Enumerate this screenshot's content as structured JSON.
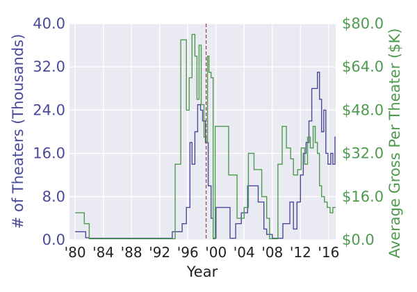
{
  "chart_data": {
    "type": "line",
    "xlabel": "Year",
    "ylabel_left": "# of Theaters (Thousands)",
    "ylabel_right": "Average Gross Per Theater ($K)",
    "xlim": [
      1979.2,
      2017
    ],
    "ylim_left": [
      0,
      40
    ],
    "ylim_right": [
      0,
      80
    ],
    "x_ticks": [
      1980,
      1984,
      1988,
      1992,
      1996,
      2000,
      2004,
      2008,
      2012,
      2016
    ],
    "x_tick_labels": [
      "'80",
      "'84",
      "'88",
      "'92",
      "'96",
      "'00",
      "'04",
      "'08",
      "'12",
      "'16"
    ],
    "y_ticks_left": [
      0,
      8,
      16,
      24,
      32,
      40
    ],
    "y_tick_labels_left": [
      "0.0",
      "8.0",
      "16.0",
      "24.0",
      "32.0",
      "40.0"
    ],
    "y_ticks_right": [
      0,
      16,
      32,
      48,
      64,
      80
    ],
    "y_tick_labels_right": [
      "$0.0",
      "$16.0",
      "$32.0",
      "$48.0",
      "$64.0",
      "$80.0"
    ],
    "grid": true,
    "vline": {
      "x": 1998.6,
      "style": "dashed",
      "color": "#a0505a"
    },
    "series": [
      {
        "axis": "left",
        "color": "#4a4a9a",
        "x": [
          1980,
          1981,
          1981.5,
          1982,
          1993.5,
          1993.8,
          1994.5,
          1995.2,
          1995.8,
          1996.3,
          1996.6,
          1997,
          1997.4,
          1997.8,
          1998.1,
          1998.5,
          1998.9,
          1999.3,
          1999.6,
          2000,
          2001.5,
          2002,
          2002.8,
          2003.2,
          2003.6,
          2004.5,
          2005.5,
          2006,
          2006.8,
          2007.2,
          2008,
          2009,
          2009.5,
          2010,
          2010.5,
          2011,
          2011.5,
          2012,
          2012.4,
          2012.8,
          2013.2,
          2013.6,
          2014,
          2014.4,
          2014.7,
          2015,
          2015.3,
          2015.6,
          2015.9,
          2016.3,
          2016.6,
          2016.9
        ],
        "y": [
          1.5,
          1.5,
          0.4,
          0.3,
          0.3,
          1.5,
          1.5,
          3,
          6,
          18,
          14,
          20,
          25,
          24,
          22,
          18,
          10,
          4,
          0.3,
          6,
          6,
          0.3,
          3,
          3,
          5,
          10,
          10,
          7,
          2,
          1,
          0.3,
          0.3,
          3,
          3,
          7,
          2,
          7,
          12,
          16,
          18,
          22,
          28,
          28,
          31,
          26,
          20,
          24,
          16,
          14,
          16,
          14,
          19
        ]
      },
      {
        "axis": "right",
        "color": "#4e9a4e",
        "x": [
          1980,
          1981,
          1981.3,
          1981.5,
          1982,
          1992,
          1994.2,
          1994.4,
          1995,
          1995.4,
          1995.8,
          1996.2,
          1996.6,
          1997,
          1997.3,
          1997.6,
          1997.9,
          1998.3,
          1998.6,
          1998.8,
          1999,
          1999.3,
          1999.6,
          1999.9,
          2000.2,
          2001.5,
          2001.8,
          2002.6,
          2003,
          2003.4,
          2004,
          2004.6,
          2005.4,
          2006,
          2006.5,
          2007.2,
          2007.6,
          2008.2,
          2008.8,
          2009.4,
          2010,
          2010.6,
          2011,
          2011.6,
          2012.1,
          2012.6,
          2013,
          2013.4,
          2013.8,
          2014.1,
          2014.4,
          2014.7,
          2015,
          2015.4,
          2015.8,
          2016.2,
          2016.6
        ],
        "y": [
          10,
          10,
          6,
          6,
          0.4,
          0.4,
          28,
          28,
          74,
          74,
          48,
          60,
          76,
          68,
          52,
          72,
          50,
          38,
          36,
          68,
          62,
          60,
          0.4,
          42,
          42,
          42,
          24,
          24,
          8,
          8,
          12,
          32,
          26,
          26,
          16,
          8,
          0.4,
          0.4,
          28,
          42,
          34,
          30,
          24,
          26,
          34,
          28,
          38,
          34,
          42,
          36,
          32,
          20,
          16,
          14,
          12,
          10,
          12
        ]
      }
    ]
  }
}
